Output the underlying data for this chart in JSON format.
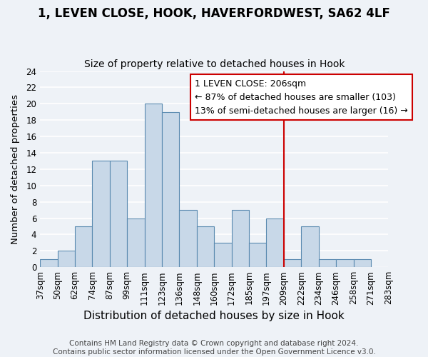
{
  "title": "1, LEVEN CLOSE, HOOK, HAVERFORDWEST, SA62 4LF",
  "subtitle": "Size of property relative to detached houses in Hook",
  "xlabel": "Distribution of detached houses by size in Hook",
  "ylabel": "Number of detached properties",
  "footer_lines": [
    "Contains HM Land Registry data © Crown copyright and database right 2024.",
    "Contains public sector information licensed under the Open Government Licence v3.0."
  ],
  "tick_labels": [
    "37sqm",
    "50sqm",
    "62sqm",
    "74sqm",
    "87sqm",
    "99sqm",
    "111sqm",
    "123sqm",
    "136sqm",
    "148sqm",
    "160sqm",
    "172sqm",
    "185sqm",
    "197sqm",
    "209sqm",
    "222sqm",
    "234sqm",
    "246sqm",
    "258sqm",
    "271sqm",
    "283sqm"
  ],
  "counts": [
    1,
    2,
    5,
    13,
    13,
    6,
    20,
    19,
    7,
    5,
    3,
    7,
    3,
    6,
    1,
    5,
    1,
    1,
    1,
    0
  ],
  "bar_color": "#c8d8e8",
  "bar_edge_color": "#5a8ab0",
  "ylim": [
    0,
    24
  ],
  "yticks": [
    0,
    2,
    4,
    6,
    8,
    10,
    12,
    14,
    16,
    18,
    20,
    22,
    24
  ],
  "property_line_color": "#cc0000",
  "annotation_title": "1 LEVEN CLOSE: 206sqm",
  "annotation_line1": "← 87% of detached houses are smaller (103)",
  "annotation_line2": "13% of semi-detached houses are larger (16) →",
  "annotation_box_color": "#ffffff",
  "annotation_box_edge_color": "#cc0000",
  "background_color": "#eef2f7",
  "grid_color": "#ffffff",
  "title_fontsize": 12,
  "subtitle_fontsize": 10,
  "xlabel_fontsize": 11,
  "ylabel_fontsize": 9.5,
  "tick_fontsize": 8.5,
  "annotation_fontsize": 9,
  "footer_fontsize": 7.5
}
